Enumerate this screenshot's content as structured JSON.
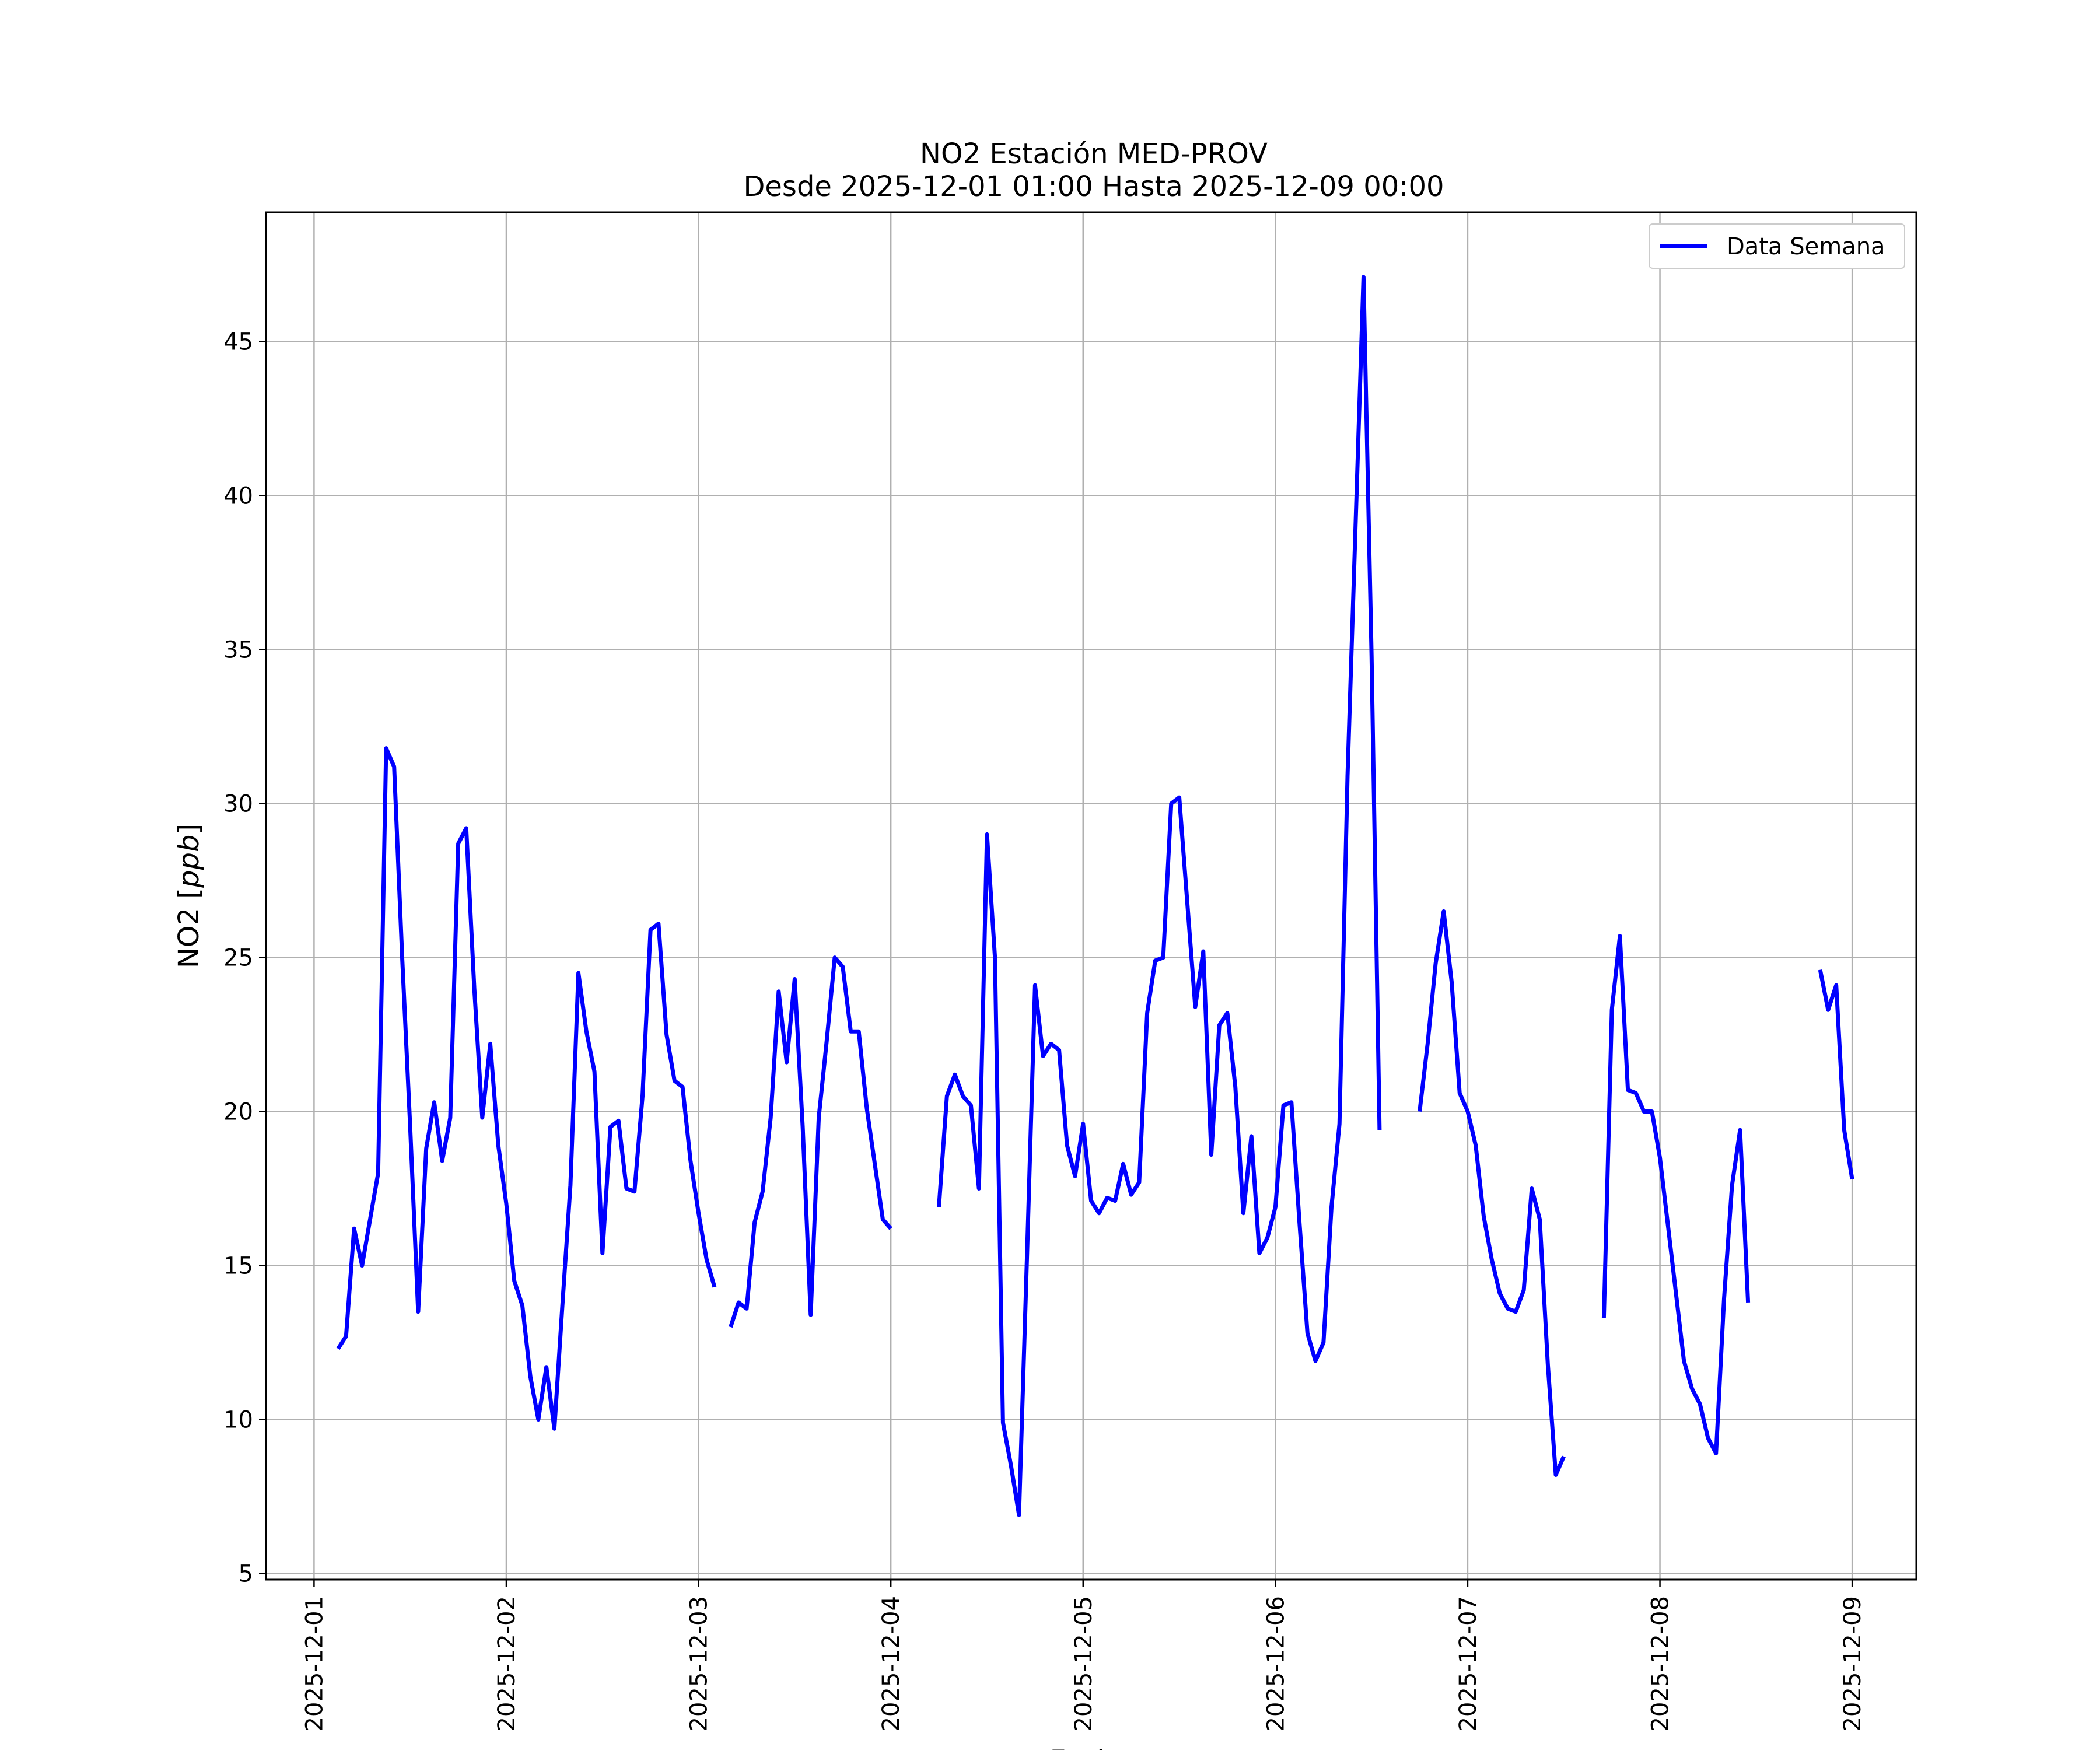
{
  "chart_data": {
    "type": "line",
    "title": "NO2 Estación MED-PROV",
    "subtitle": "Desde 2025-12-01 01:00 Hasta 2025-12-09 00:00",
    "xlabel": "Fecha",
    "ylabel_text": "NO2 [",
    "ylabel_unit": "ppb",
    "ylabel_close": "]",
    "xlim": [
      "2025-11-30T18:00",
      "2025-12-09T08:00"
    ],
    "ylim": [
      4.8,
      49.2
    ],
    "xticks": [
      "2025-12-01",
      "2025-12-02",
      "2025-12-03",
      "2025-12-04",
      "2025-12-05",
      "2025-12-06",
      "2025-12-07",
      "2025-12-08",
      "2025-12-09"
    ],
    "yticks": [
      5,
      10,
      15,
      20,
      25,
      30,
      35,
      40,
      45
    ],
    "grid": true,
    "legend_position": "top-right",
    "series": [
      {
        "name": "Data Semana",
        "color": "#0000ff",
        "segments": [
          [
            [
              "2025-12-01T03:00",
              12.3
            ],
            [
              "2025-12-01T04:00",
              12.7
            ],
            [
              "2025-12-01T05:00",
              16.2
            ],
            [
              "2025-12-01T06:00",
              15.0
            ],
            [
              "2025-12-01T07:00",
              16.5
            ],
            [
              "2025-12-01T08:00",
              18.0
            ],
            [
              "2025-12-01T09:00",
              31.8
            ],
            [
              "2025-12-01T10:00",
              31.2
            ],
            [
              "2025-12-01T11:00",
              25.0
            ],
            [
              "2025-12-01T12:00",
              19.5
            ],
            [
              "2025-12-01T13:00",
              13.5
            ],
            [
              "2025-12-01T14:00",
              18.8
            ],
            [
              "2025-12-01T15:00",
              20.3
            ],
            [
              "2025-12-01T16:00",
              18.4
            ],
            [
              "2025-12-01T17:00",
              19.8
            ],
            [
              "2025-12-01T18:00",
              28.7
            ],
            [
              "2025-12-01T19:00",
              29.2
            ],
            [
              "2025-12-01T20:00",
              24.0
            ],
            [
              "2025-12-01T21:00",
              19.8
            ],
            [
              "2025-12-01T22:00",
              22.2
            ],
            [
              "2025-12-01T23:00",
              18.9
            ],
            [
              "2025-12-02T00:00",
              17.0
            ],
            [
              "2025-12-02T01:00",
              14.5
            ],
            [
              "2025-12-02T02:00",
              13.7
            ],
            [
              "2025-12-02T03:00",
              11.4
            ],
            [
              "2025-12-02T04:00",
              10.0
            ],
            [
              "2025-12-02T05:00",
              11.7
            ],
            [
              "2025-12-02T06:00",
              9.7
            ],
            [
              "2025-12-02T07:00",
              13.7
            ],
            [
              "2025-12-02T08:00",
              17.6
            ],
            [
              "2025-12-02T09:00",
              24.5
            ],
            [
              "2025-12-02T10:00",
              22.6
            ],
            [
              "2025-12-02T11:00",
              21.3
            ],
            [
              "2025-12-02T12:00",
              15.4
            ],
            [
              "2025-12-02T13:00",
              19.5
            ],
            [
              "2025-12-02T14:00",
              19.7
            ],
            [
              "2025-12-02T15:00",
              17.5
            ],
            [
              "2025-12-02T16:00",
              17.4
            ],
            [
              "2025-12-02T17:00",
              20.5
            ],
            [
              "2025-12-02T18:00",
              25.9
            ],
            [
              "2025-12-02T19:00",
              26.1
            ],
            [
              "2025-12-02T20:00",
              22.5
            ],
            [
              "2025-12-02T21:00",
              21.0
            ],
            [
              "2025-12-02T22:00",
              20.8
            ],
            [
              "2025-12-02T23:00",
              18.4
            ],
            [
              "2025-12-03T00:00",
              16.7
            ],
            [
              "2025-12-03T01:00",
              15.2
            ],
            [
              "2025-12-03T02:00",
              14.3
            ]
          ],
          [
            [
              "2025-12-03T04:00",
              13.0
            ],
            [
              "2025-12-03T05:00",
              13.8
            ],
            [
              "2025-12-03T06:00",
              13.6
            ],
            [
              "2025-12-03T07:00",
              16.4
            ],
            [
              "2025-12-03T08:00",
              17.4
            ],
            [
              "2025-12-03T09:00",
              19.8
            ],
            [
              "2025-12-03T10:00",
              23.9
            ],
            [
              "2025-12-03T11:00",
              21.6
            ],
            [
              "2025-12-03T12:00",
              24.3
            ],
            [
              "2025-12-03T13:00",
              19.5
            ],
            [
              "2025-12-03T14:00",
              13.4
            ],
            [
              "2025-12-03T15:00",
              19.8
            ],
            [
              "2025-12-03T16:00",
              22.3
            ],
            [
              "2025-12-03T17:00",
              25.0
            ],
            [
              "2025-12-03T18:00",
              24.7
            ],
            [
              "2025-12-03T19:00",
              22.6
            ],
            [
              "2025-12-03T20:00",
              22.6
            ],
            [
              "2025-12-03T21:00",
              20.1
            ],
            [
              "2025-12-03T22:00",
              18.3
            ],
            [
              "2025-12-03T23:00",
              16.5
            ],
            [
              "2025-12-04T00:00",
              16.2
            ]
          ],
          [
            [
              "2025-12-04T06:00",
              16.9
            ],
            [
              "2025-12-04T07:00",
              20.5
            ],
            [
              "2025-12-04T08:00",
              21.2
            ],
            [
              "2025-12-04T09:00",
              20.5
            ],
            [
              "2025-12-04T10:00",
              20.2
            ],
            [
              "2025-12-04T11:00",
              17.5
            ],
            [
              "2025-12-04T12:00",
              29.0
            ],
            [
              "2025-12-04T13:00",
              25.0
            ],
            [
              "2025-12-04T14:00",
              9.9
            ],
            [
              "2025-12-04T15:00",
              8.5
            ],
            [
              "2025-12-04T16:00",
              6.9
            ],
            [
              "2025-12-04T17:00",
              15.3
            ],
            [
              "2025-12-04T18:00",
              24.1
            ],
            [
              "2025-12-04T19:00",
              21.8
            ],
            [
              "2025-12-04T20:00",
              22.2
            ],
            [
              "2025-12-04T21:00",
              22.0
            ],
            [
              "2025-12-04T22:00",
              18.9
            ],
            [
              "2025-12-04T23:00",
              17.9
            ],
            [
              "2025-12-05T00:00",
              19.6
            ],
            [
              "2025-12-05T01:00",
              17.1
            ],
            [
              "2025-12-05T02:00",
              16.7
            ],
            [
              "2025-12-05T03:00",
              17.2
            ],
            [
              "2025-12-05T04:00",
              17.1
            ],
            [
              "2025-12-05T05:00",
              18.3
            ],
            [
              "2025-12-05T06:00",
              17.3
            ],
            [
              "2025-12-05T07:00",
              17.7
            ],
            [
              "2025-12-05T08:00",
              23.2
            ],
            [
              "2025-12-05T09:00",
              24.9
            ],
            [
              "2025-12-05T10:00",
              25.0
            ],
            [
              "2025-12-05T11:00",
              30.0
            ],
            [
              "2025-12-05T12:00",
              30.2
            ],
            [
              "2025-12-05T13:00",
              26.8
            ],
            [
              "2025-12-05T14:00",
              23.4
            ],
            [
              "2025-12-05T15:00",
              25.2
            ],
            [
              "2025-12-05T16:00",
              18.6
            ],
            [
              "2025-12-05T17:00",
              22.8
            ],
            [
              "2025-12-05T18:00",
              23.2
            ],
            [
              "2025-12-05T19:00",
              20.8
            ],
            [
              "2025-12-05T20:00",
              16.7
            ],
            [
              "2025-12-05T21:00",
              19.2
            ],
            [
              "2025-12-05T22:00",
              15.4
            ],
            [
              "2025-12-05T23:00",
              15.9
            ],
            [
              "2025-12-06T00:00",
              16.9
            ],
            [
              "2025-12-06T01:00",
              20.2
            ],
            [
              "2025-12-06T02:00",
              20.3
            ],
            [
              "2025-12-06T03:00",
              16.4
            ],
            [
              "2025-12-06T04:00",
              12.8
            ],
            [
              "2025-12-06T05:00",
              11.9
            ],
            [
              "2025-12-06T06:00",
              12.5
            ],
            [
              "2025-12-06T07:00",
              16.9
            ],
            [
              "2025-12-06T08:00",
              19.6
            ],
            [
              "2025-12-06T09:00",
              30.9
            ],
            [
              "2025-12-06T10:00",
              39.0
            ],
            [
              "2025-12-06T11:00",
              47.1
            ],
            [
              "2025-12-06T12:00",
              34.8
            ],
            [
              "2025-12-06T13:00",
              19.4
            ]
          ],
          [
            [
              "2025-12-06T18:00",
              20.0
            ],
            [
              "2025-12-06T19:00",
              22.2
            ],
            [
              "2025-12-06T20:00",
              24.8
            ],
            [
              "2025-12-06T21:00",
              26.5
            ],
            [
              "2025-12-06T22:00",
              24.2
            ],
            [
              "2025-12-06T23:00",
              20.6
            ],
            [
              "2025-12-07T00:00",
              20.0
            ],
            [
              "2025-12-07T01:00",
              18.9
            ],
            [
              "2025-12-07T02:00",
              16.6
            ],
            [
              "2025-12-07T03:00",
              15.2
            ],
            [
              "2025-12-07T04:00",
              14.1
            ],
            [
              "2025-12-07T05:00",
              13.6
            ],
            [
              "2025-12-07T06:00",
              13.5
            ],
            [
              "2025-12-07T07:00",
              14.2
            ],
            [
              "2025-12-07T08:00",
              17.5
            ],
            [
              "2025-12-07T09:00",
              16.5
            ],
            [
              "2025-12-07T10:00",
              11.8
            ],
            [
              "2025-12-07T11:00",
              8.2
            ],
            [
              "2025-12-07T12:00",
              8.8
            ]
          ],
          [
            [
              "2025-12-07T17:00",
              13.3
            ],
            [
              "2025-12-07T18:00",
              23.3
            ],
            [
              "2025-12-07T19:00",
              25.7
            ],
            [
              "2025-12-07T20:00",
              20.7
            ],
            [
              "2025-12-07T21:00",
              20.6
            ],
            [
              "2025-12-07T22:00",
              20.0
            ],
            [
              "2025-12-07T23:00",
              20.0
            ],
            [
              "2025-12-08T00:00",
              18.5
            ],
            [
              "2025-12-08T01:00",
              16.3
            ],
            [
              "2025-12-08T02:00",
              14.1
            ],
            [
              "2025-12-08T03:00",
              11.9
            ],
            [
              "2025-12-08T04:00",
              11.0
            ],
            [
              "2025-12-08T05:00",
              10.5
            ],
            [
              "2025-12-08T06:00",
              9.4
            ],
            [
              "2025-12-08T07:00",
              8.9
            ],
            [
              "2025-12-08T08:00",
              13.9
            ],
            [
              "2025-12-08T09:00",
              17.6
            ],
            [
              "2025-12-08T10:00",
              19.4
            ],
            [
              "2025-12-08T11:00",
              13.8
            ]
          ],
          [
            [
              "2025-12-08T20:00",
              24.6
            ],
            [
              "2025-12-08T21:00",
              23.3
            ],
            [
              "2025-12-08T22:00",
              24.1
            ],
            [
              "2025-12-08T23:00",
              19.4
            ],
            [
              "2025-12-09T00:00",
              17.8
            ]
          ]
        ]
      }
    ]
  }
}
